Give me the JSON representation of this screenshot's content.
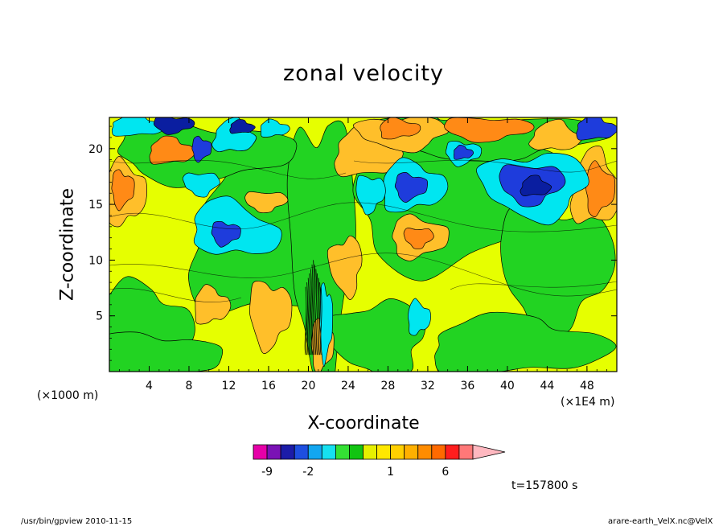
{
  "chart_data": {
    "type": "heatmap",
    "title": "zonal velocity",
    "xlabel": "X-coordinate",
    "ylabel": "Z-coordinate",
    "x_unit_left": "(×1000 m)",
    "x_unit_right": "(×1E4 m)",
    "xlim": [
      0,
      51
    ],
    "ylim": [
      0,
      22.8
    ],
    "xticks": [
      4,
      8,
      12,
      16,
      20,
      24,
      28,
      32,
      36,
      40,
      44,
      48
    ],
    "yticks": [
      5,
      10,
      15,
      20
    ],
    "colorbar": {
      "levels": [
        -12,
        -9,
        -6,
        -3,
        -2,
        -1.5,
        -1,
        -0.5,
        0,
        0.5,
        1,
        1.5,
        2,
        3,
        6,
        9,
        12
      ],
      "tick_labels": [
        {
          "value": -9,
          "label": "-9"
        },
        {
          "value": -2,
          "label": "-2"
        },
        {
          "value": 1,
          "label": "1"
        },
        {
          "value": 6,
          "label": "6"
        }
      ],
      "colors": [
        "#e600a8",
        "#7a12b5",
        "#1c1ca8",
        "#1e4fe0",
        "#12a6f0",
        "#16e0f0",
        "#34e034",
        "#12c412",
        "#e6f000",
        "#ffe800",
        "#ffd000",
        "#ffb000",
        "#ff8c00",
        "#ff6a00",
        "#ff1e1e",
        "#ff7878",
        "#ffb8c0"
      ]
    },
    "fill_colors": {
      "background": "#e6ff00",
      "green": "#22d322",
      "cyan": "#00e6f0",
      "blue": "#1e3cdc",
      "navy": "#0a1ea0",
      "lightorange": "#ffbf2a",
      "orange": "#ff8a16",
      "darkorange": "#ff6a00"
    }
  },
  "annotations": {
    "time_label": "t=157800 s",
    "footer_left": "/usr/bin/gpview 2010-11-15",
    "footer_right": "arare-earth_VelX.nc@VelX"
  }
}
